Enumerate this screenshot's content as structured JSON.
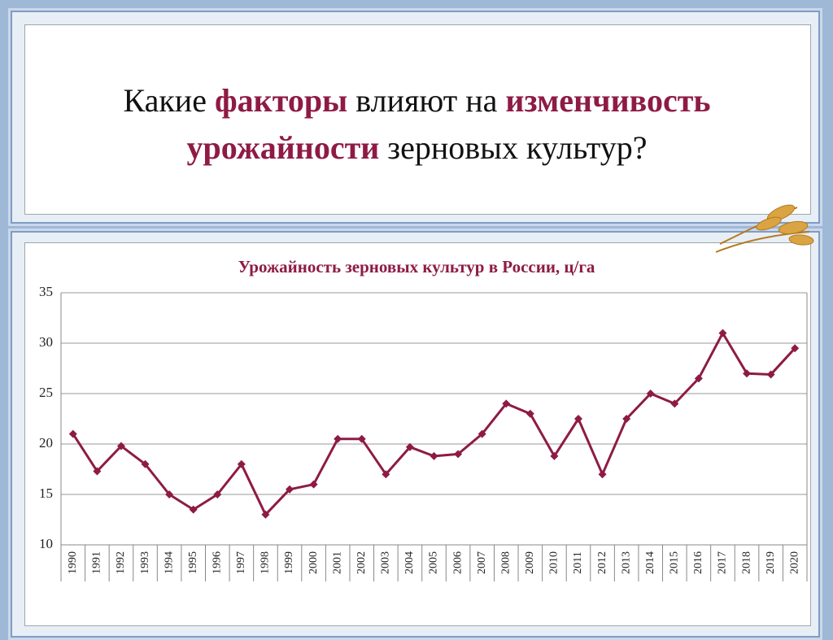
{
  "heading": {
    "lines": [
      [
        {
          "text": "Какие ",
          "bold": false
        },
        {
          "text": "факторы",
          "bold": true
        },
        {
          "text": " влияют на ",
          "bold": false
        },
        {
          "text": "изменчивость",
          "bold": true
        }
      ],
      [
        {
          "text": "урожайности",
          "bold": true
        },
        {
          "text": " зерновых культур?",
          "bold": false
        }
      ]
    ],
    "accent_color": "#8e1b45"
  },
  "chart_data": {
    "type": "line",
    "title": "Урожайность зерновых культур в России, ц/га",
    "categories": [
      "1990",
      "1991",
      "1992",
      "1993",
      "1994",
      "1995",
      "1996",
      "1997",
      "1998",
      "1999",
      "2000",
      "2001",
      "2002",
      "2003",
      "2004",
      "2005",
      "2006",
      "2007",
      "2008",
      "2009",
      "2010",
      "2011",
      "2012",
      "2013",
      "2014",
      "2015",
      "2016",
      "2017",
      "2018",
      "2019",
      "2020"
    ],
    "values": [
      21,
      17.3,
      19.8,
      18,
      15,
      13.5,
      15,
      18,
      13,
      15.5,
      16,
      20.5,
      20.5,
      17,
      19.7,
      18.8,
      19,
      21,
      24,
      23,
      18.8,
      22.5,
      17,
      22.5,
      25,
      24,
      26.5,
      31,
      27,
      26.9,
      29.5
    ],
    "color": "#8e1b45",
    "ylim": [
      10,
      35
    ],
    "yticks": [
      10,
      15,
      20,
      25,
      30,
      35
    ],
    "grid": true
  }
}
